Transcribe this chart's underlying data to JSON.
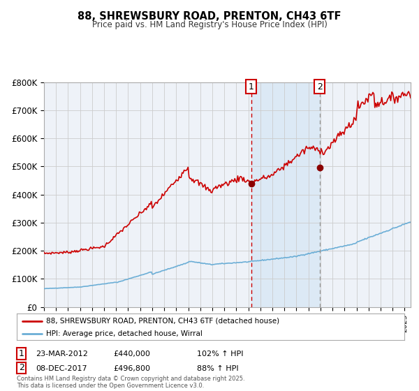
{
  "title1": "88, SHREWSBURY ROAD, PRENTON, CH43 6TF",
  "title2": "Price paid vs. HM Land Registry's House Price Index (HPI)",
  "legend_line1": "88, SHREWSBURY ROAD, PRENTON, CH43 6TF (detached house)",
  "legend_line2": "HPI: Average price, detached house, Wirral",
  "annotation1_label": "1",
  "annotation1_date": "23-MAR-2012",
  "annotation1_price": "£440,000",
  "annotation1_hpi": "102% ↑ HPI",
  "annotation2_label": "2",
  "annotation2_date": "08-DEC-2017",
  "annotation2_price": "£496,800",
  "annotation2_hpi": "88% ↑ HPI",
  "footer": "Contains HM Land Registry data © Crown copyright and database right 2025.\nThis data is licensed under the Open Government Licence v3.0.",
  "hpi_color": "#6baed6",
  "price_color": "#cc0000",
  "dot_color": "#8b0000",
  "background_color": "#ffffff",
  "plot_bg_color": "#eef2f8",
  "grid_color": "#cccccc",
  "shade_color": "#dce9f5",
  "vline1_color": "#cc0000",
  "vline2_color": "#999999",
  "sale1_x": 2012.23,
  "sale1_y": 440000,
  "sale2_x": 2017.93,
  "sale2_y": 496800,
  "ylim": [
    0,
    800000
  ],
  "ylabel_ticks": [
    0,
    100000,
    200000,
    300000,
    400000,
    500000,
    600000,
    700000,
    800000
  ],
  "ylabel_labels": [
    "£0",
    "£100K",
    "£200K",
    "£300K",
    "£400K",
    "£500K",
    "£600K",
    "£700K",
    "£800K"
  ],
  "xmin": 1995,
  "xmax": 2025.5
}
